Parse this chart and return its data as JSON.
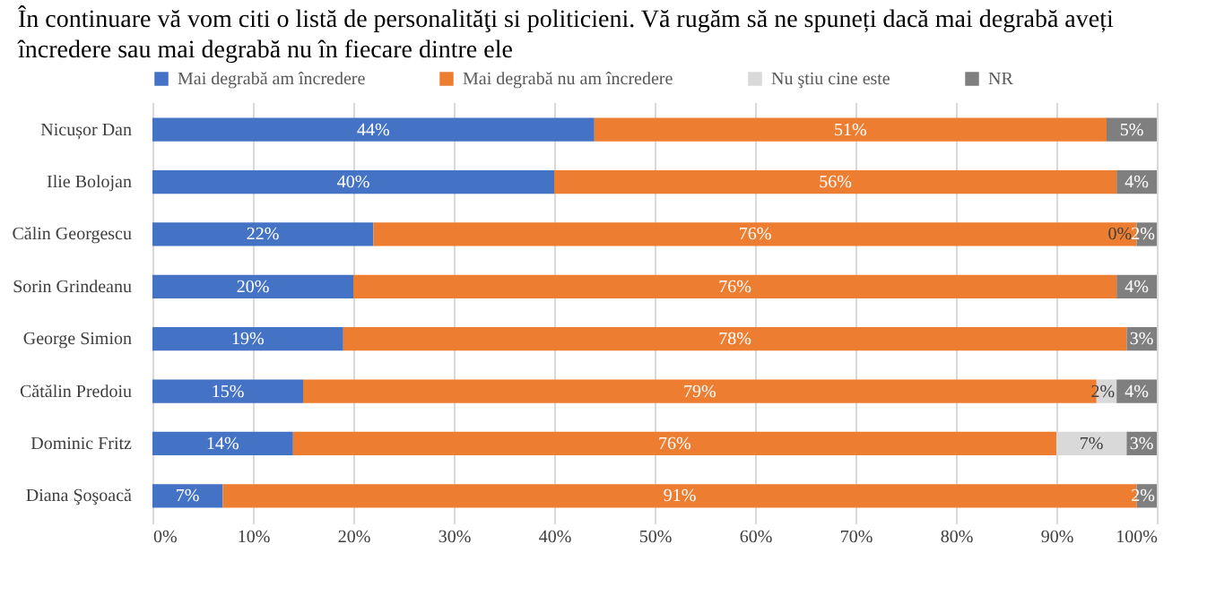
{
  "chart_data": {
    "type": "bar",
    "orientation": "horizontal",
    "stacked": true,
    "title": "În continuare vă vom citi o listă de personalităţi si politicieni. Vă rugăm să ne spuneți dacă mai degrabă aveți încredere sau mai degrabă nu în fiecare dintre ele",
    "categories": [
      "Nicușor Dan",
      "Ilie Bolojan",
      "Călin Georgescu",
      "Sorin Grindeanu",
      "George Simion",
      "Cătălin Predoiu",
      "Dominic Fritz",
      "Diana Şoşoacă"
    ],
    "series": [
      {
        "name": "Mai degrabă am încredere",
        "color": "#4472c4",
        "values": [
          44,
          40,
          22,
          20,
          19,
          15,
          14,
          7
        ],
        "value_labels": [
          "44%",
          "40%",
          "22%",
          "20%",
          "19%",
          "15%",
          "14%",
          "7%"
        ]
      },
      {
        "name": "Mai degrabă nu am încredere",
        "color": "#ed7d31",
        "values": [
          51,
          56,
          76,
          76,
          78,
          79,
          76,
          91
        ],
        "value_labels": [
          "51%",
          "56%",
          "76%",
          "76%",
          "78%",
          "79%",
          "76%",
          "91%"
        ]
      },
      {
        "name": "Nu ştiu cine este",
        "color": "#d9d9d9",
        "values": [
          0,
          0,
          0,
          0,
          0,
          2,
          7,
          0
        ],
        "value_labels": [
          null,
          null,
          "0%",
          null,
          null,
          "2%",
          "7%",
          null
        ]
      },
      {
        "name": "NR",
        "color": "#7f7f7f",
        "values": [
          5,
          4,
          2,
          4,
          3,
          4,
          3,
          2
        ],
        "value_labels": [
          "5%",
          "4%",
          "2%",
          "4%",
          "3%",
          "4%",
          "3%",
          "2%"
        ]
      }
    ],
    "xlim": [
      0,
      100
    ],
    "xticks": [
      {
        "value": 0,
        "label": "0%"
      },
      {
        "value": 10,
        "label": "10%"
      },
      {
        "value": 20,
        "label": "20%"
      },
      {
        "value": 30,
        "label": "30%"
      },
      {
        "value": 40,
        "label": "40%"
      },
      {
        "value": 50,
        "label": "50%"
      },
      {
        "value": 60,
        "label": "60%"
      },
      {
        "value": 70,
        "label": "70%"
      },
      {
        "value": 80,
        "label": "80%"
      },
      {
        "value": 90,
        "label": "90%"
      },
      {
        "value": 100,
        "label": "100%"
      }
    ],
    "grid": "x",
    "legend": "top"
  }
}
